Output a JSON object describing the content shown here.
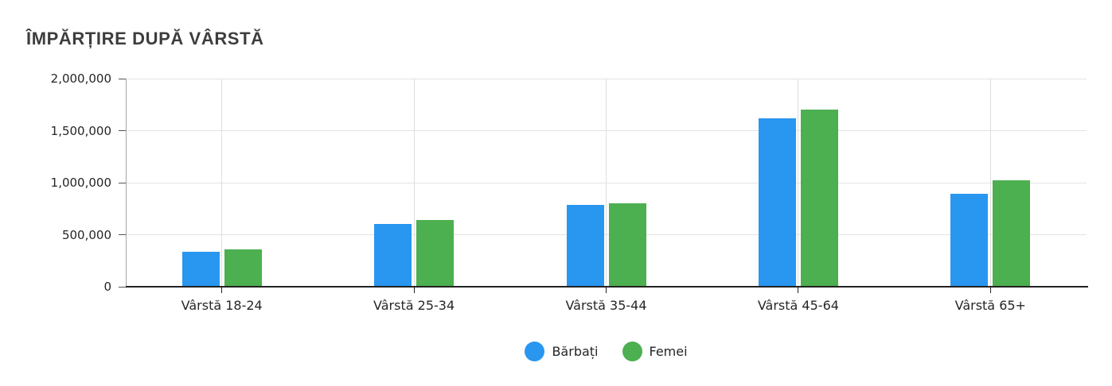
{
  "chart_data": {
    "type": "bar",
    "title": "ÎMPĂRȚIRE DUPĂ VÂRSTĂ",
    "categories": [
      "Vârstă 18-24",
      "Vârstă 25-34",
      "Vârstă 35-44",
      "Vârstă 45-64",
      "Vârstă 65+"
    ],
    "series": [
      {
        "name": "Bărbați",
        "color": "#2996f0",
        "values": [
          335000,
          605000,
          790000,
          1620000,
          890000
        ]
      },
      {
        "name": "Femei",
        "color": "#4caf50",
        "values": [
          355000,
          640000,
          805000,
          1700000,
          1020000
        ]
      }
    ],
    "xlabel": "",
    "ylabel": "",
    "ylim": [
      0,
      2000000
    ],
    "y_ticks": [
      0,
      500000,
      1000000,
      1500000,
      2000000
    ],
    "y_tick_labels": [
      "0",
      "500,000",
      "1,000,000",
      "1,500,000",
      "2,000,000"
    ],
    "grid": true,
    "legend_position": "bottom"
  },
  "colors": {
    "background": "#ffffff",
    "title_text": "#3d3d3d",
    "axis_text": "#262626",
    "gridline": "#e3e3e3",
    "axis_line": "#222222"
  }
}
